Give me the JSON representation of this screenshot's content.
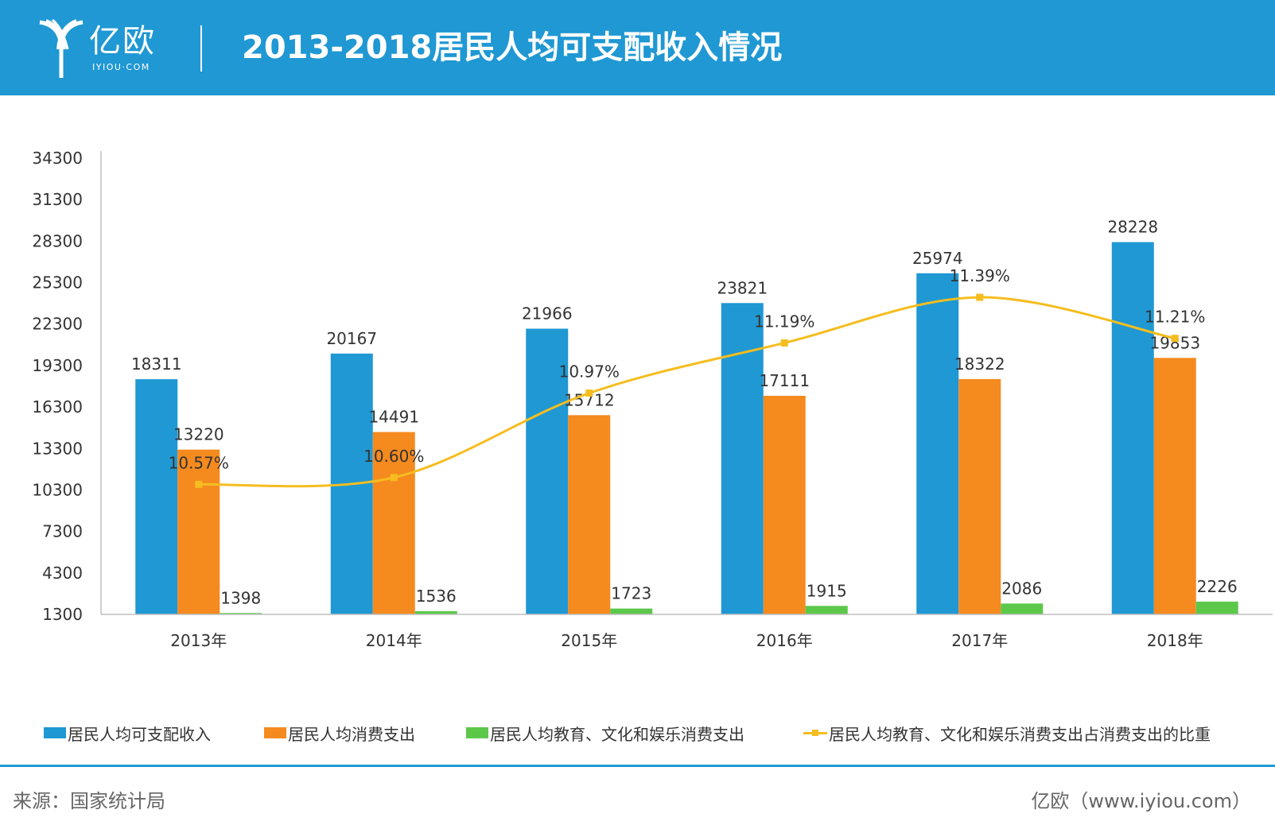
{
  "header": {
    "logo_text": "亿欧",
    "logo_sub": "IYIOU·COM",
    "title": "2013-2018居民人均可支配收入情况"
  },
  "colors": {
    "header_bg": "#1f98d3",
    "income": "#1f98d3",
    "consumption": "#f58a1f",
    "education": "#5cc84a",
    "ratio": "#f5bd1f"
  },
  "chart_data": {
    "type": "bar",
    "title": "2013-2018居民人均可支配收入情况",
    "categories": [
      "2013年",
      "2014年",
      "2015年",
      "2016年",
      "2017年",
      "2018年"
    ],
    "series": [
      {
        "name": "居民人均可支配收入",
        "kind": "bar",
        "values": [
          18311,
          20167,
          21966,
          23821,
          25974,
          28228
        ]
      },
      {
        "name": "居民人均消费支出",
        "kind": "bar",
        "values": [
          13220,
          14491,
          15712,
          17111,
          18322,
          19853
        ]
      },
      {
        "name": "居民人均教育、文化和娱乐消费支出",
        "kind": "bar",
        "values": [
          1398,
          1536,
          1723,
          1915,
          2086,
          2226
        ]
      },
      {
        "name": "居民人均教育、文化和娱乐消费支出占消费支出的比重",
        "kind": "line",
        "values": [
          10.57,
          10.6,
          10.97,
          11.19,
          11.39,
          11.21
        ],
        "labels": [
          "10.57%",
          "10.60%",
          "10.97%",
          "11.19%",
          "11.39%",
          "11.21%"
        ]
      }
    ],
    "y_ticks": [
      1300,
      4300,
      7300,
      10300,
      13300,
      16300,
      19300,
      22300,
      25300,
      28300,
      31300,
      34300
    ],
    "ylim": [
      1300,
      34300
    ],
    "ratio_range": [
      10.0,
      12.0
    ],
    "xlabel": "",
    "ylabel": "",
    "grid": false,
    "legend_position": "bottom"
  },
  "legend": [
    {
      "label": "居民人均可支配收入",
      "type": "bar"
    },
    {
      "label": "居民人均消费支出",
      "type": "bar"
    },
    {
      "label": "居民人均教育、文化和娱乐消费支出",
      "type": "bar"
    },
    {
      "label": "居民人均教育、文化和娱乐消费支出占消费支出的比重",
      "type": "line"
    }
  ],
  "footer": {
    "source": "来源：国家统计局",
    "credit": "亿欧（www.iyiou.com）"
  }
}
